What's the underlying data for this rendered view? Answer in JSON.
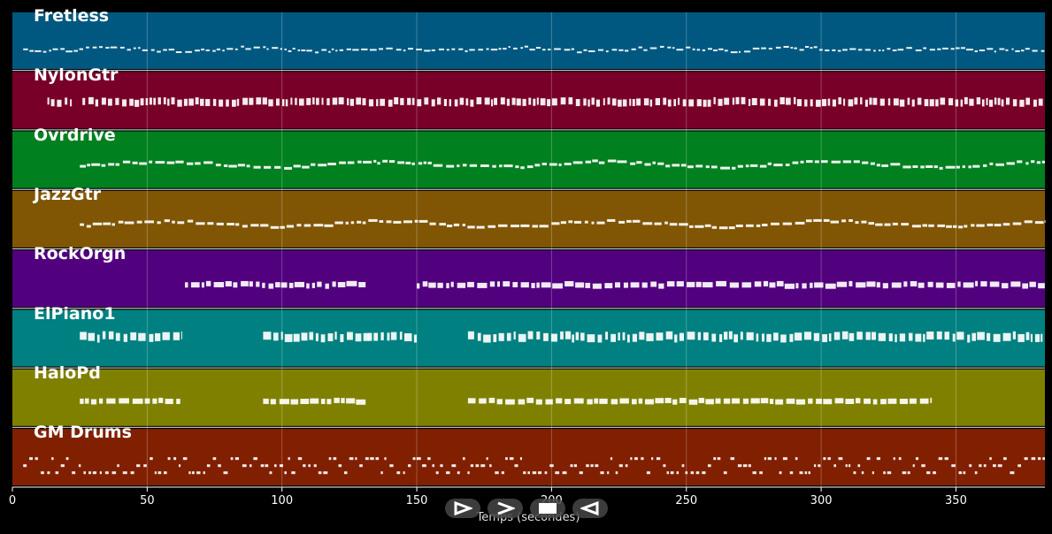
{
  "chart_data": {
    "type": "piano-roll",
    "xlabel": "Temps (secondes)",
    "xlim": [
      0,
      383
    ],
    "xticks": [
      0,
      50,
      100,
      150,
      200,
      250,
      300,
      350
    ],
    "grid": true,
    "tracks": [
      {
        "name": "Fretless",
        "color": "#005880",
        "segments": [
          [
            4,
            383
          ]
        ],
        "style": "thin-wave"
      },
      {
        "name": "NylonGtr",
        "color": "#780028",
        "segments": [
          [
            13,
            22
          ],
          [
            26,
            383
          ]
        ],
        "style": "dense-block"
      },
      {
        "name": "Ovrdrive",
        "color": "#00801f",
        "segments": [
          [
            25,
            383
          ]
        ],
        "style": "wavy-line"
      },
      {
        "name": "JazzGtr",
        "color": "#805605",
        "segments": [
          [
            25,
            383
          ]
        ],
        "style": "wavy-line"
      },
      {
        "name": "RockOrgn",
        "color": "#51007e",
        "segments": [
          [
            64,
            131
          ],
          [
            150,
            383
          ]
        ],
        "style": "block-line"
      },
      {
        "name": "ElPiano1",
        "color": "#008080",
        "segments": [
          [
            25,
            63
          ],
          [
            93,
            133
          ],
          [
            132,
            150
          ],
          [
            169,
            383
          ]
        ],
        "style": "stacked-blocks"
      },
      {
        "name": "HaloPd",
        "color": "#808000",
        "segments": [
          [
            25,
            63
          ],
          [
            93,
            131
          ],
          [
            169,
            341
          ]
        ],
        "style": "single-block"
      },
      {
        "name": "GM Drums",
        "color": "#802000",
        "segments": [
          [
            4,
            383
          ]
        ],
        "style": "drums"
      }
    ]
  },
  "controls": [
    {
      "name": "play-forward-icon",
      "glyph": "play-outline"
    },
    {
      "name": "next-icon",
      "glyph": "chevron-right"
    },
    {
      "name": "stop-icon",
      "glyph": "square"
    },
    {
      "name": "back-icon",
      "glyph": "play-reverse-outline"
    }
  ]
}
